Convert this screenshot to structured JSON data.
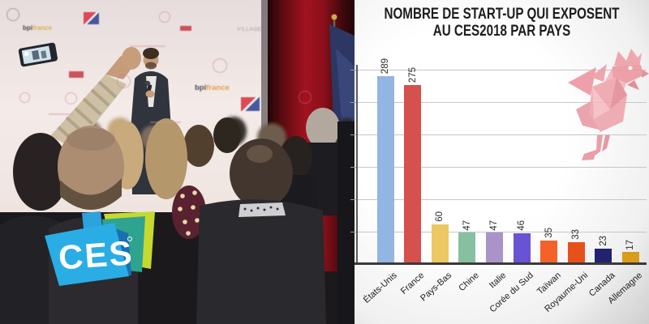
{
  "photo": {
    "backdrop": {
      "bpifrance_top": {
        "bpi": "bpi",
        "france": "france"
      },
      "bpifrance_mid": {
        "bpi": "bpi",
        "france": "france"
      },
      "village": "V!LLAGE"
    },
    "ces_logo": {
      "text": "CES",
      "colors": {
        "light_blue": "#29ade4",
        "dark_blue": "#1a6fb0",
        "teal": "#2ea390",
        "yellow_green": "#c5d92f"
      }
    },
    "icons": [
      "french-tech-logo",
      "french-flag",
      "smartphone",
      "origami-rooster-icon"
    ]
  },
  "chart_data": {
    "type": "bar",
    "title": "NOMBRE DE START-UP QUI EXPOSENT AU CES2018 PAR PAYS",
    "title_line1": "NOMBRE DE START-UP QUI EXPOSENT",
    "title_line2": "AU CES2018  PAR PAYS",
    "categories": [
      "États-Unis",
      "France",
      "Pays-Bas",
      "Chine",
      "Italie",
      "Corée du Sud",
      "Taïwan",
      "Royaume-Uni",
      "Canada",
      "Allemagne"
    ],
    "values": [
      289,
      275,
      60,
      47,
      47,
      46,
      35,
      33,
      23,
      17
    ],
    "bar_colors": [
      "#92b5e2",
      "#d5514d",
      "#ecc863",
      "#87c0a0",
      "#a993c8",
      "#6753d3",
      "#f4622a",
      "#e6511a",
      "#22226f",
      "#d79d1b"
    ],
    "xlabel": "",
    "ylabel": "",
    "ylim": [
      0,
      300
    ],
    "grid_step": 50,
    "grid": true,
    "legend": false,
    "annotations": [
      "origami-rooster-icon"
    ]
  }
}
